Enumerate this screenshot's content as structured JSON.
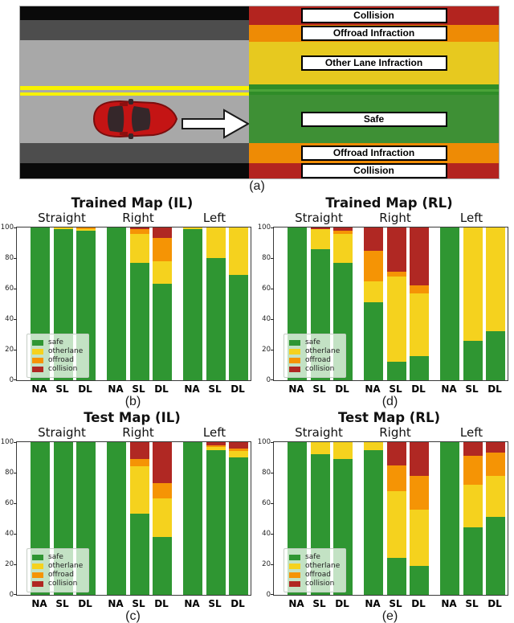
{
  "colors": {
    "safe": "#2f9632",
    "otherlane": "#f5d21e",
    "offroad": "#f59405",
    "collision": "#b02823"
  },
  "panel_a": {
    "caption": "(a)",
    "road_bands": [
      {
        "name": "shoulder-black-top",
        "color": "#0a0a0a",
        "h": 17
      },
      {
        "name": "shoulder-gray-top",
        "color": "#4d4d4d",
        "h": 25
      },
      {
        "name": "lane-upper",
        "color": "#a8a8a8",
        "h": 57
      },
      {
        "name": "median-yellow-line-1",
        "color": "#f7f200",
        "h": 5
      },
      {
        "name": "median-gap",
        "color": "#a8a8a8",
        "h": 3
      },
      {
        "name": "median-yellow-line-2",
        "color": "#f7f200",
        "h": 4
      },
      {
        "name": "lane-lower",
        "color": "#a8a8a8",
        "h": 59
      },
      {
        "name": "shoulder-gray-bottom",
        "color": "#4d4d4d",
        "h": 25
      },
      {
        "name": "shoulder-black-bottom",
        "color": "#0a0a0a",
        "h": 19
      }
    ],
    "zones": [
      {
        "label": "Collision",
        "color": "#b3241f",
        "h": 23,
        "labeled": true
      },
      {
        "label": "Offroad Infraction",
        "color": "#ee8b05",
        "h": 21,
        "labeled": true
      },
      {
        "label": "Other Lane Infraction",
        "color": "#e7c91f",
        "h": 53,
        "labeled": true
      },
      {
        "label": "",
        "color": "#2f8c28",
        "h": 6,
        "labeled": false
      },
      {
        "label": "",
        "color": "#4aa338",
        "h": 3,
        "labeled": false
      },
      {
        "label": "",
        "color": "#2f8c28",
        "h": 4,
        "labeled": false
      },
      {
        "label": "Safe",
        "color": "#3e9035",
        "h": 60,
        "labeled": true
      },
      {
        "label": "Offroad Infraction",
        "color": "#ee8b05",
        "h": 25,
        "labeled": true
      },
      {
        "label": "Collision",
        "color": "#b3241f",
        "h": 19,
        "labeled": true
      }
    ]
  },
  "chart_data": [
    {
      "id": "b",
      "type": "bar",
      "stacked": true,
      "title": "Trained Map (IL)",
      "caption": "(b)",
      "groups": [
        "Straight",
        "Right",
        "Left"
      ],
      "bars": [
        "NA",
        "SL",
        "DL"
      ],
      "segments": [
        "safe",
        "otherlane",
        "offroad",
        "collision"
      ],
      "ylim": [
        0,
        100
      ],
      "yticks": [
        0,
        20,
        40,
        60,
        80,
        100
      ],
      "legend_position": "lower-left",
      "values": {
        "Straight": {
          "NA": [
            100,
            0,
            0,
            0
          ],
          "SL": [
            99,
            1,
            0,
            0
          ],
          "DL": [
            98,
            1,
            1,
            0
          ]
        },
        "Right": {
          "NA": [
            100,
            0,
            0,
            0
          ],
          "SL": [
            77,
            19,
            3,
            1
          ],
          "DL": [
            63,
            15,
            15,
            7
          ]
        },
        "Left": {
          "NA": [
            99,
            1,
            0,
            0
          ],
          "SL": [
            80,
            20,
            0,
            0
          ],
          "DL": [
            69,
            31,
            0,
            0
          ]
        }
      }
    },
    {
      "id": "d",
      "type": "bar",
      "stacked": true,
      "title": "Trained Map (RL)",
      "caption": "(d)",
      "groups": [
        "Straight",
        "Right",
        "Left"
      ],
      "bars": [
        "NA",
        "SL",
        "DL"
      ],
      "segments": [
        "safe",
        "otherlane",
        "offroad",
        "collision"
      ],
      "ylim": [
        0,
        100
      ],
      "yticks": [
        0,
        20,
        40,
        60,
        80,
        100
      ],
      "legend_position": "lower-left",
      "values": {
        "Straight": {
          "NA": [
            100,
            0,
            0,
            0
          ],
          "SL": [
            86,
            13,
            0,
            1
          ],
          "DL": [
            77,
            19,
            2,
            2
          ]
        },
        "Right": {
          "NA": [
            51,
            14,
            20,
            15
          ],
          "SL": [
            12,
            56,
            3,
            29
          ],
          "DL": [
            16,
            41,
            5,
            38
          ]
        },
        "Left": {
          "NA": [
            100,
            0,
            0,
            0
          ],
          "SL": [
            26,
            74,
            0,
            0
          ],
          "DL": [
            32,
            68,
            0,
            0
          ]
        }
      }
    },
    {
      "id": "c",
      "type": "bar",
      "stacked": true,
      "title": "Test Map (IL)",
      "caption": "(c)",
      "groups": [
        "Straight",
        "Right",
        "Left"
      ],
      "bars": [
        "NA",
        "SL",
        "DL"
      ],
      "segments": [
        "safe",
        "otherlane",
        "offroad",
        "collision"
      ],
      "ylim": [
        0,
        100
      ],
      "yticks": [
        0,
        20,
        40,
        60,
        80,
        100
      ],
      "legend_position": "lower-left",
      "values": {
        "Straight": {
          "NA": [
            100,
            0,
            0,
            0
          ],
          "SL": [
            100,
            0,
            0,
            0
          ],
          "DL": [
            100,
            0,
            0,
            0
          ]
        },
        "Right": {
          "NA": [
            100,
            0,
            0,
            0
          ],
          "SL": [
            53,
            31,
            5,
            11
          ],
          "DL": [
            38,
            25,
            10,
            27
          ]
        },
        "Left": {
          "NA": [
            100,
            0,
            0,
            0
          ],
          "SL": [
            95,
            2,
            1,
            2
          ],
          "DL": [
            90,
            4,
            2,
            4
          ]
        }
      }
    },
    {
      "id": "e",
      "type": "bar",
      "stacked": true,
      "title": "Test Map (RL)",
      "caption": "(e)",
      "groups": [
        "Straight",
        "Right",
        "Left"
      ],
      "bars": [
        "NA",
        "SL",
        "DL"
      ],
      "segments": [
        "safe",
        "otherlane",
        "offroad",
        "collision"
      ],
      "ylim": [
        0,
        100
      ],
      "yticks": [
        0,
        20,
        40,
        60,
        80,
        100
      ],
      "legend_position": "lower-left",
      "values": {
        "Straight": {
          "NA": [
            100,
            0,
            0,
            0
          ],
          "SL": [
            92,
            8,
            0,
            0
          ],
          "DL": [
            89,
            11,
            0,
            0
          ]
        },
        "Right": {
          "NA": [
            95,
            5,
            0,
            0
          ],
          "SL": [
            24,
            44,
            17,
            15
          ],
          "DL": [
            19,
            37,
            22,
            22
          ]
        },
        "Left": {
          "NA": [
            100,
            0,
            0,
            0
          ],
          "SL": [
            44,
            28,
            19,
            9
          ],
          "DL": [
            51,
            27,
            15,
            7
          ]
        }
      }
    }
  ]
}
